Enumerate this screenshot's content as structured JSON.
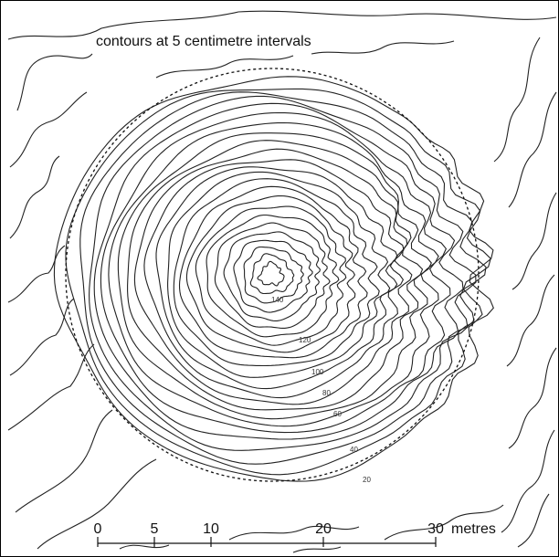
{
  "caption": "contours at 5 centimetre intervals",
  "contour_labels": [
    "140",
    "120",
    "100",
    "80",
    "60",
    "40",
    "20"
  ],
  "scale_bar": {
    "ticks": [
      "0",
      "5",
      "10",
      "20",
      "30"
    ],
    "unit": "metres"
  },
  "colors": {
    "line": "#222222",
    "background": "#ffffff"
  }
}
